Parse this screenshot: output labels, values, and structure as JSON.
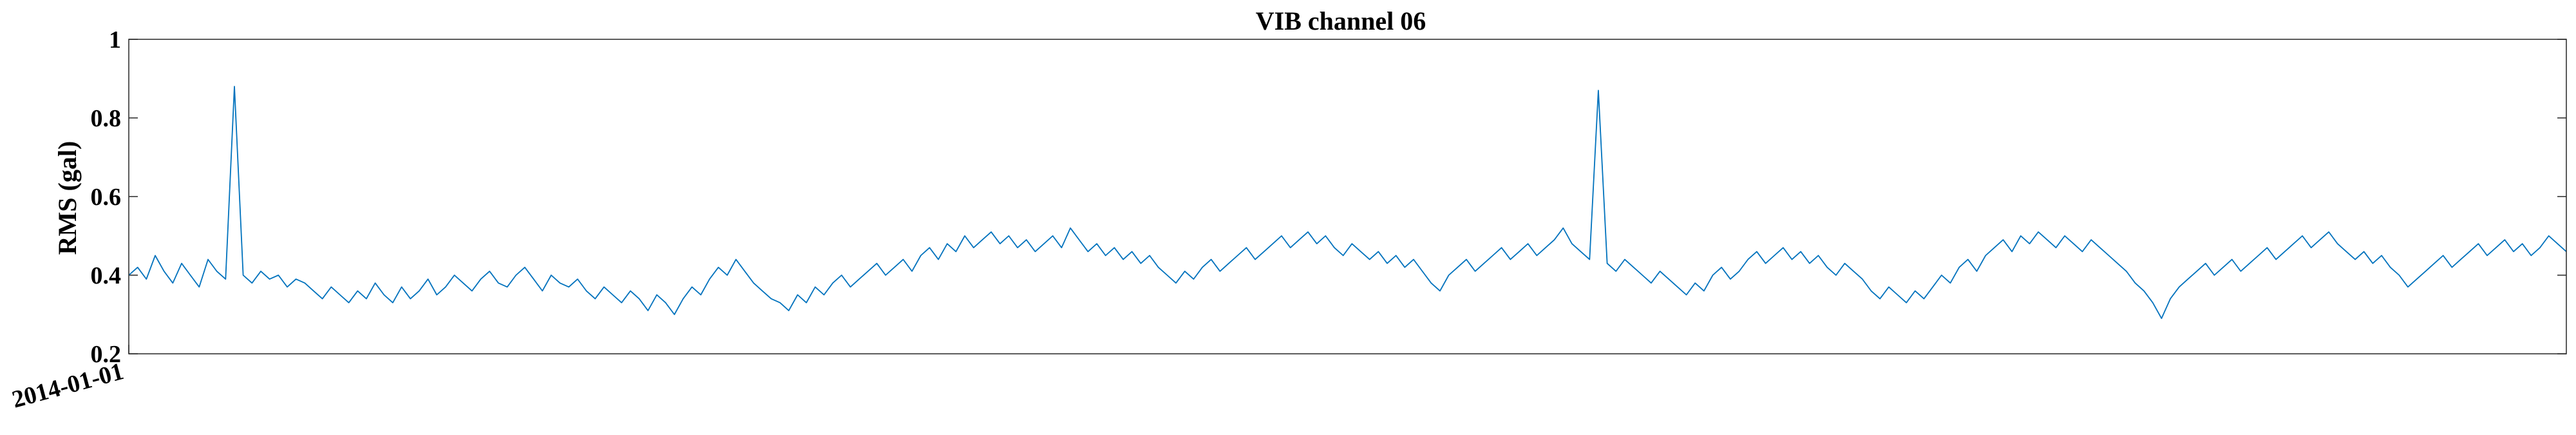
{
  "chart_data": {
    "type": "line",
    "title": "VIB channel 06",
    "xlabel": "",
    "ylabel": "RMS (gal)",
    "ylim": [
      0.2,
      1.0
    ],
    "yticks": [
      0.2,
      0.4,
      0.6,
      0.8,
      1.0
    ],
    "ytick_labels": [
      "0.2",
      "0.4",
      "0.6",
      "0.8",
      "1"
    ],
    "xticks": [
      "2014-01-01"
    ],
    "x_start": "2014-01-01",
    "grid": false,
    "legend": "none",
    "series": [
      {
        "color": "#0072BD",
        "values": [
          0.4,
          0.42,
          0.39,
          0.45,
          0.41,
          0.38,
          0.43,
          0.4,
          0.37,
          0.44,
          0.41,
          0.39,
          0.88,
          0.4,
          0.38,
          0.41,
          0.39,
          0.4,
          0.37,
          0.39,
          0.38,
          0.36,
          0.34,
          0.37,
          0.35,
          0.33,
          0.36,
          0.34,
          0.38,
          0.35,
          0.33,
          0.37,
          0.34,
          0.36,
          0.39,
          0.35,
          0.37,
          0.4,
          0.38,
          0.36,
          0.39,
          0.41,
          0.38,
          0.37,
          0.4,
          0.42,
          0.39,
          0.36,
          0.4,
          0.38,
          0.37,
          0.39,
          0.36,
          0.34,
          0.37,
          0.35,
          0.33,
          0.36,
          0.34,
          0.31,
          0.35,
          0.33,
          0.3,
          0.34,
          0.37,
          0.35,
          0.39,
          0.42,
          0.4,
          0.44,
          0.41,
          0.38,
          0.36,
          0.34,
          0.33,
          0.31,
          0.35,
          0.33,
          0.37,
          0.35,
          0.38,
          0.4,
          0.37,
          0.39,
          0.41,
          0.43,
          0.4,
          0.42,
          0.44,
          0.41,
          0.45,
          0.47,
          0.44,
          0.48,
          0.46,
          0.5,
          0.47,
          0.49,
          0.51,
          0.48,
          0.5,
          0.47,
          0.49,
          0.46,
          0.48,
          0.5,
          0.47,
          0.52,
          0.49,
          0.46,
          0.48,
          0.45,
          0.47,
          0.44,
          0.46,
          0.43,
          0.45,
          0.42,
          0.4,
          0.38,
          0.41,
          0.39,
          0.42,
          0.44,
          0.41,
          0.43,
          0.45,
          0.47,
          0.44,
          0.46,
          0.48,
          0.5,
          0.47,
          0.49,
          0.51,
          0.48,
          0.5,
          0.47,
          0.45,
          0.48,
          0.46,
          0.44,
          0.46,
          0.43,
          0.45,
          0.42,
          0.44,
          0.41,
          0.38,
          0.36,
          0.4,
          0.42,
          0.44,
          0.41,
          0.43,
          0.45,
          0.47,
          0.44,
          0.46,
          0.48,
          0.45,
          0.47,
          0.49,
          0.52,
          0.48,
          0.46,
          0.44,
          0.87,
          0.43,
          0.41,
          0.44,
          0.42,
          0.4,
          0.38,
          0.41,
          0.39,
          0.37,
          0.35,
          0.38,
          0.36,
          0.4,
          0.42,
          0.39,
          0.41,
          0.44,
          0.46,
          0.43,
          0.45,
          0.47,
          0.44,
          0.46,
          0.43,
          0.45,
          0.42,
          0.4,
          0.43,
          0.41,
          0.39,
          0.36,
          0.34,
          0.37,
          0.35,
          0.33,
          0.36,
          0.34,
          0.37,
          0.4,
          0.38,
          0.42,
          0.44,
          0.41,
          0.45,
          0.47,
          0.49,
          0.46,
          0.5,
          0.48,
          0.51,
          0.49,
          0.47,
          0.5,
          0.48,
          0.46,
          0.49,
          0.47,
          0.45,
          0.43,
          0.41,
          0.38,
          0.36,
          0.33,
          0.29,
          0.34,
          0.37,
          0.39,
          0.41,
          0.43,
          0.4,
          0.42,
          0.44,
          0.41,
          0.43,
          0.45,
          0.47,
          0.44,
          0.46,
          0.48,
          0.5,
          0.47,
          0.49,
          0.51,
          0.48,
          0.46,
          0.44,
          0.46,
          0.43,
          0.45,
          0.42,
          0.4,
          0.37,
          0.39,
          0.41,
          0.43,
          0.45,
          0.42,
          0.44,
          0.46,
          0.48,
          0.45,
          0.47,
          0.49,
          0.46,
          0.48,
          0.45,
          0.47,
          0.5,
          0.48,
          0.46
        ]
      }
    ]
  }
}
